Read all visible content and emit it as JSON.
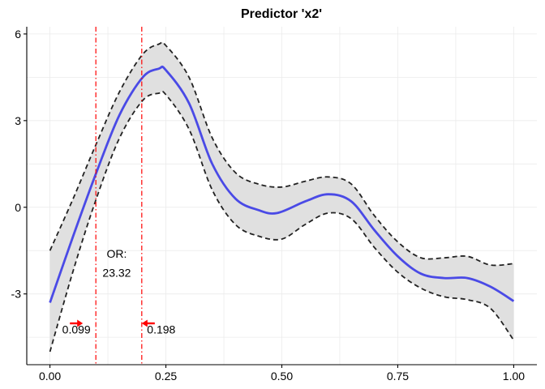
{
  "chart_data": {
    "type": "line",
    "title": "Predictor 'x2'",
    "xlabel": "",
    "ylabel": "",
    "xlim": [
      -0.05,
      1.05
    ],
    "ylim": [
      -5.45,
      6.25
    ],
    "x_ticks": [
      0.0,
      0.25,
      0.5,
      0.75,
      1.0
    ],
    "x_tick_labels": [
      "0.00",
      "0.25",
      "0.50",
      "0.75",
      "1.00"
    ],
    "y_ticks": [
      -3,
      0,
      3,
      6
    ],
    "y_tick_labels": [
      "-3",
      "0",
      "3",
      "6"
    ],
    "grid": true,
    "legend": "none",
    "series": [
      {
        "role": "estimate",
        "color": "#4a4ae6",
        "x": [
          0.0,
          0.05,
          0.1,
          0.15,
          0.2,
          0.235,
          0.25,
          0.3,
          0.35,
          0.4,
          0.45,
          0.49,
          0.55,
          0.6,
          0.65,
          0.7,
          0.75,
          0.8,
          0.85,
          0.9,
          0.95,
          1.0
        ],
        "y": [
          -3.3,
          -1.0,
          1.2,
          3.2,
          4.5,
          4.8,
          4.75,
          3.6,
          1.5,
          0.3,
          -0.1,
          -0.2,
          0.2,
          0.45,
          0.2,
          -0.8,
          -1.7,
          -2.3,
          -2.45,
          -2.45,
          -2.75,
          -3.25
        ]
      },
      {
        "role": "upper-ci",
        "color": "#222222",
        "x": [
          0.0,
          0.05,
          0.1,
          0.15,
          0.2,
          0.235,
          0.25,
          0.3,
          0.35,
          0.4,
          0.45,
          0.5,
          0.55,
          0.6,
          0.65,
          0.7,
          0.75,
          0.8,
          0.85,
          0.9,
          0.95,
          1.0
        ],
        "y": [
          -1.5,
          0.3,
          2.2,
          4.0,
          5.3,
          5.65,
          5.6,
          4.5,
          2.4,
          1.2,
          0.8,
          0.7,
          0.9,
          1.05,
          0.8,
          -0.3,
          -1.2,
          -1.75,
          -1.75,
          -1.7,
          -2.0,
          -1.95
        ]
      },
      {
        "role": "lower-ci",
        "color": "#222222",
        "x": [
          0.0,
          0.05,
          0.1,
          0.15,
          0.2,
          0.235,
          0.25,
          0.3,
          0.35,
          0.4,
          0.45,
          0.5,
          0.55,
          0.6,
          0.65,
          0.7,
          0.75,
          0.8,
          0.85,
          0.9,
          0.95,
          1.0
        ],
        "y": [
          -5.0,
          -2.2,
          0.3,
          2.4,
          3.7,
          3.95,
          3.9,
          2.7,
          0.6,
          -0.6,
          -1.0,
          -1.1,
          -0.6,
          -0.2,
          -0.4,
          -1.4,
          -2.25,
          -2.8,
          -3.1,
          -3.2,
          -3.5,
          -4.6
        ]
      }
    ],
    "vlines": [
      {
        "x": 0.099,
        "color": "#ff0000",
        "style": "dotdash"
      },
      {
        "x": 0.198,
        "color": "#ff0000",
        "style": "dotdash"
      }
    ],
    "annotations": {
      "left_value": {
        "text": "0.099",
        "x": 0.057,
        "y": -4.37,
        "arrow": "right"
      },
      "right_value": {
        "text": "0.198",
        "x": 0.24,
        "y": -4.37,
        "arrow": "left"
      },
      "or_label": "OR:",
      "or_value": "23.32",
      "or_x": 0.144,
      "or_label_y": -1.75,
      "or_value_y": -2.4
    },
    "colors": {
      "band_fill": "#e0e0e0",
      "estimate": "#4a4ae6",
      "ci": "#222222",
      "vline": "#ff0000",
      "arrow": "#ff0000"
    }
  }
}
